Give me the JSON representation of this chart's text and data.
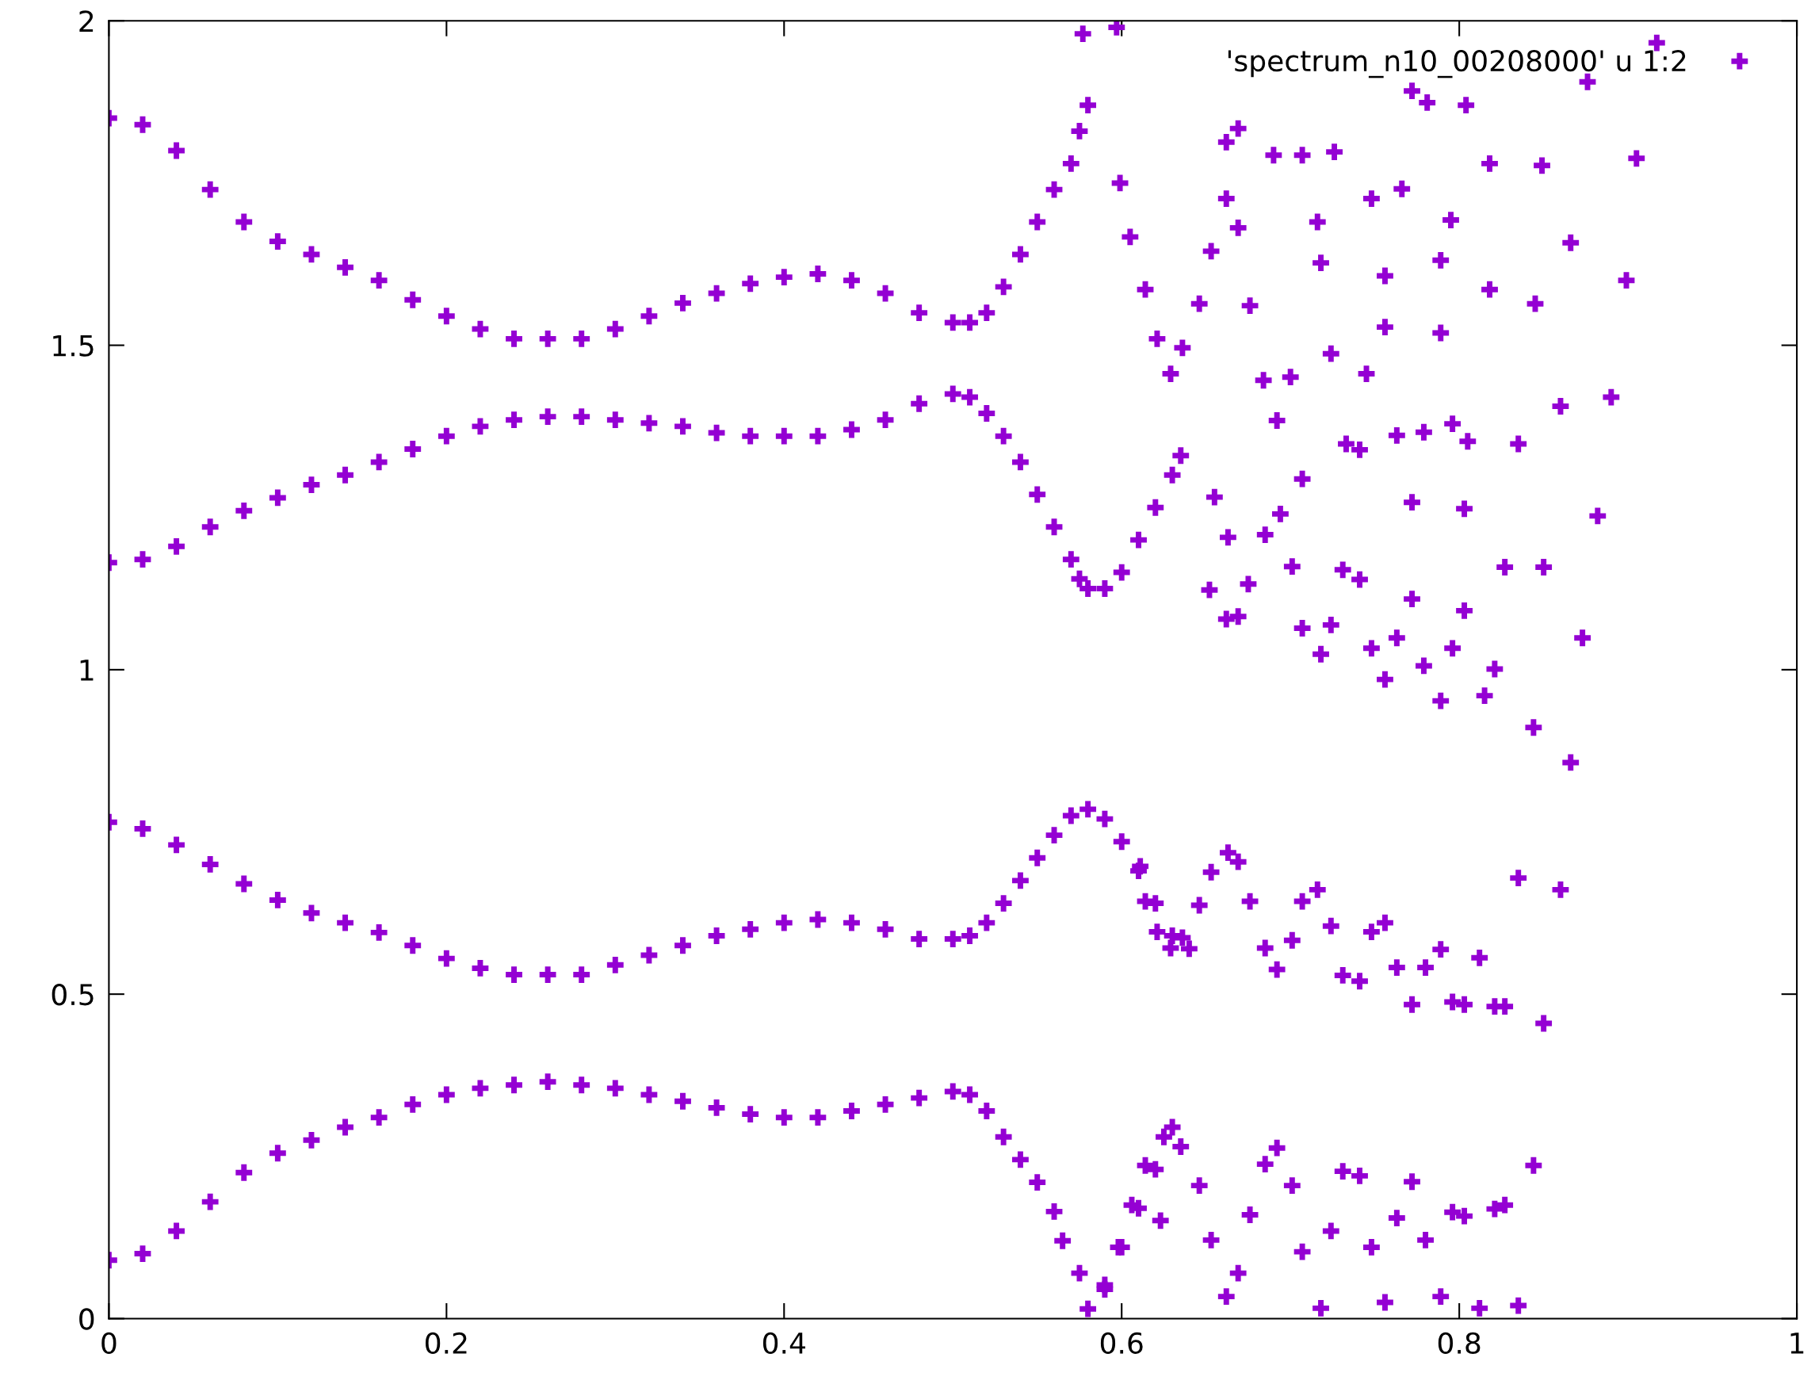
{
  "chart_data": {
    "type": "scatter",
    "xlim": [
      0,
      1
    ],
    "ylim": [
      0,
      2
    ],
    "xticks": [
      0,
      0.2,
      0.4,
      0.6,
      0.8,
      1
    ],
    "yticks": [
      0,
      0.5,
      1,
      1.5,
      2
    ],
    "grid": false,
    "legend": "top right",
    "marker": "cross",
    "series": [
      {
        "name": "'spectrum_n10_00208000' u 1:2",
        "color": "#9400d3",
        "x": [
          0,
          0.02,
          0.04,
          0.06,
          0.08,
          0.1,
          0.12,
          0.14,
          0.16,
          0.18,
          0.2,
          0.22,
          0.24,
          0.26,
          0.28,
          0.3,
          0.32,
          0.34,
          0.36,
          0.38,
          0.4,
          0.42,
          0.44,
          0.46,
          0.48,
          0.5,
          0.51,
          0.52,
          0.53,
          0.54,
          0.55,
          0.56,
          0.57,
          0.575,
          0.58,
          0.577,
          0.597,
          0,
          0.02,
          0.04,
          0.06,
          0.08,
          0.1,
          0.12,
          0.14,
          0.16,
          0.18,
          0.2,
          0.22,
          0.24,
          0.26,
          0.28,
          0.3,
          0.32,
          0.34,
          0.36,
          0.38,
          0.4,
          0.42,
          0.44,
          0.46,
          0.48,
          0.5,
          0.51,
          0.52,
          0.53,
          0.54,
          0.55,
          0.56,
          0.57,
          0.575,
          0.58,
          0.59,
          0.6,
          0.61,
          0.62,
          0.63,
          0.635,
          0,
          0.02,
          0.04,
          0.06,
          0.08,
          0.1,
          0.12,
          0.14,
          0.16,
          0.18,
          0.2,
          0.22,
          0.24,
          0.26,
          0.28,
          0.3,
          0.32,
          0.34,
          0.36,
          0.38,
          0.4,
          0.42,
          0.44,
          0.46,
          0.48,
          0.5,
          0.51,
          0.52,
          0.53,
          0.54,
          0.55,
          0.56,
          0.57,
          0.58,
          0.59,
          0.6,
          0.61,
          0.62,
          0.63,
          0.64,
          0,
          0.02,
          0.04,
          0.06,
          0.08,
          0.1,
          0.12,
          0.14,
          0.16,
          0.18,
          0.2,
          0.22,
          0.24,
          0.26,
          0.28,
          0.3,
          0.32,
          0.34,
          0.36,
          0.38,
          0.4,
          0.42,
          0.44,
          0.46,
          0.48,
          0.5,
          0.51,
          0.52,
          0.53,
          0.54,
          0.55,
          0.56,
          0.565,
          0.575,
          0.58,
          0.59,
          0.6,
          0.61,
          0.62,
          0.625,
          0.63,
          0.635,
          0.599,
          0.605,
          0.614,
          0.621,
          0.629,
          0.636,
          0.646,
          0.653,
          0.662,
          0.662,
          0.669,
          0.669,
          0.676,
          0.684,
          0.7,
          0.692,
          0.69,
          0.707,
          0.716,
          0.718,
          0.726,
          0.724,
          0.748,
          0.745,
          0.756,
          0.756,
          0.766,
          0.772,
          0.781,
          0.804,
          0.795,
          0.789,
          0.789,
          0.818,
          0.818,
          0.845,
          0.849,
          0.866,
          0.876,
          0.905,
          0.917,
          0.899,
          0.89,
          0.882,
          0.86,
          0.835,
          0.805,
          0.796,
          0.779,
          0.763,
          0.733,
          0.741,
          0.707,
          0.694,
          0.685,
          0.663,
          0.655,
          0.652,
          0.662,
          0.669,
          0.675,
          0.701,
          0.707,
          0.718,
          0.724,
          0.731,
          0.741,
          0.748,
          0.756,
          0.763,
          0.772,
          0.772,
          0.779,
          0.789,
          0.796,
          0.803,
          0.803,
          0.815,
          0.821,
          0.827,
          0.844,
          0.85,
          0.866,
          0.873,
          0.611,
          0.614,
          0.621,
          0.629,
          0.636,
          0.646,
          0.653,
          0.663,
          0.669,
          0.676,
          0.685,
          0.692,
          0.701,
          0.707,
          0.716,
          0.724,
          0.731,
          0.741,
          0.748,
          0.756,
          0.763,
          0.772,
          0.78,
          0.789,
          0.796,
          0.803,
          0.812,
          0.821,
          0.827,
          0.835,
          0.85,
          0.86,
          0.623,
          0.614,
          0.606,
          0.598,
          0.59,
          0.646,
          0.653,
          0.662,
          0.669,
          0.676,
          0.685,
          0.692,
          0.701,
          0.707,
          0.718,
          0.724,
          0.731,
          0.741,
          0.748,
          0.756,
          0.763,
          0.772,
          0.78,
          0.789,
          0.796,
          0.803,
          0.812,
          0.821,
          0.827,
          0.835,
          0.844
        ],
        "values": [
          1.85,
          1.84,
          1.8,
          1.74,
          1.69,
          1.66,
          1.64,
          1.62,
          1.6,
          1.57,
          1.545,
          1.525,
          1.51,
          1.51,
          1.51,
          1.525,
          1.545,
          1.565,
          1.58,
          1.595,
          1.605,
          1.61,
          1.6,
          1.58,
          1.55,
          1.535,
          1.535,
          1.55,
          1.59,
          1.64,
          1.69,
          1.74,
          1.78,
          1.83,
          1.87,
          1.98,
          1.99,
          1.165,
          1.17,
          1.19,
          1.22,
          1.245,
          1.265,
          1.285,
          1.3,
          1.32,
          1.34,
          1.36,
          1.375,
          1.385,
          1.39,
          1.39,
          1.385,
          1.38,
          1.375,
          1.365,
          1.36,
          1.36,
          1.36,
          1.37,
          1.385,
          1.41,
          1.425,
          1.42,
          1.395,
          1.36,
          1.32,
          1.27,
          1.22,
          1.17,
          1.14,
          1.125,
          1.125,
          1.15,
          1.2,
          1.25,
          1.3,
          1.33,
          0.765,
          0.755,
          0.73,
          0.7,
          0.67,
          0.645,
          0.625,
          0.61,
          0.595,
          0.575,
          0.555,
          0.54,
          0.53,
          0.53,
          0.53,
          0.545,
          0.56,
          0.575,
          0.59,
          0.6,
          0.61,
          0.615,
          0.61,
          0.6,
          0.585,
          0.585,
          0.59,
          0.61,
          0.64,
          0.675,
          0.71,
          0.745,
          0.775,
          0.785,
          0.77,
          0.735,
          0.69,
          0.64,
          0.59,
          0.57,
          0.09,
          0.1,
          0.135,
          0.18,
          0.225,
          0.255,
          0.275,
          0.295,
          0.31,
          0.33,
          0.345,
          0.355,
          0.36,
          0.365,
          0.36,
          0.355,
          0.345,
          0.335,
          0.325,
          0.315,
          0.31,
          0.31,
          0.32,
          0.33,
          0.34,
          0.35,
          0.345,
          0.32,
          0.28,
          0.245,
          0.21,
          0.165,
          0.12,
          0.07,
          0.015,
          0.045,
          0.11,
          0.17,
          0.23,
          0.28,
          0.295,
          0.265,
          1.75,
          1.667,
          1.586,
          1.51,
          1.456,
          1.496,
          1.564,
          1.645,
          1.726,
          1.813,
          1.834,
          1.681,
          1.561,
          1.446,
          1.451,
          1.384,
          1.793,
          1.793,
          1.69,
          1.627,
          1.798,
          1.487,
          1.726,
          1.456,
          1.607,
          1.528,
          1.741,
          1.892,
          1.874,
          1.87,
          1.693,
          1.631,
          1.519,
          1.78,
          1.586,
          1.564,
          1.777,
          1.658,
          1.906,
          1.788,
          1.966,
          1.6,
          1.42,
          1.237,
          1.406,
          1.348,
          1.352,
          1.379,
          1.366,
          1.361,
          1.348,
          1.339,
          1.294,
          1.24,
          1.208,
          1.204,
          1.266,
          1.123,
          1.078,
          1.082,
          1.132,
          1.159,
          1.064,
          1.024,
          1.069,
          1.154,
          1.139,
          1.033,
          0.985,
          1.049,
          1.109,
          1.258,
          1.006,
          0.952,
          1.033,
          1.091,
          1.248,
          0.96,
          1.001,
          1.158,
          0.911,
          1.158,
          0.857,
          1.049,
          0.697,
          0.643,
          0.596,
          0.571,
          0.587,
          0.637,
          0.688,
          0.718,
          0.704,
          0.643,
          0.571,
          0.538,
          0.583,
          0.643,
          0.661,
          0.605,
          0.529,
          0.52,
          0.596,
          0.61,
          0.541,
          0.484,
          0.541,
          0.569,
          0.488,
          0.484,
          0.556,
          0.481,
          0.481,
          0.679,
          0.455,
          0.661,
          0.151,
          0.236,
          0.175,
          0.11,
          0.052,
          0.205,
          0.121,
          0.034,
          0.07,
          0.16,
          0.238,
          0.263,
          0.205,
          0.103,
          0.016,
          0.135,
          0.227,
          0.22,
          0.11,
          0.025,
          0.155,
          0.211,
          0.121,
          0.034,
          0.164,
          0.158,
          0.016,
          0.169,
          0.175,
          0.02,
          0.236
        ]
      }
    ]
  }
}
